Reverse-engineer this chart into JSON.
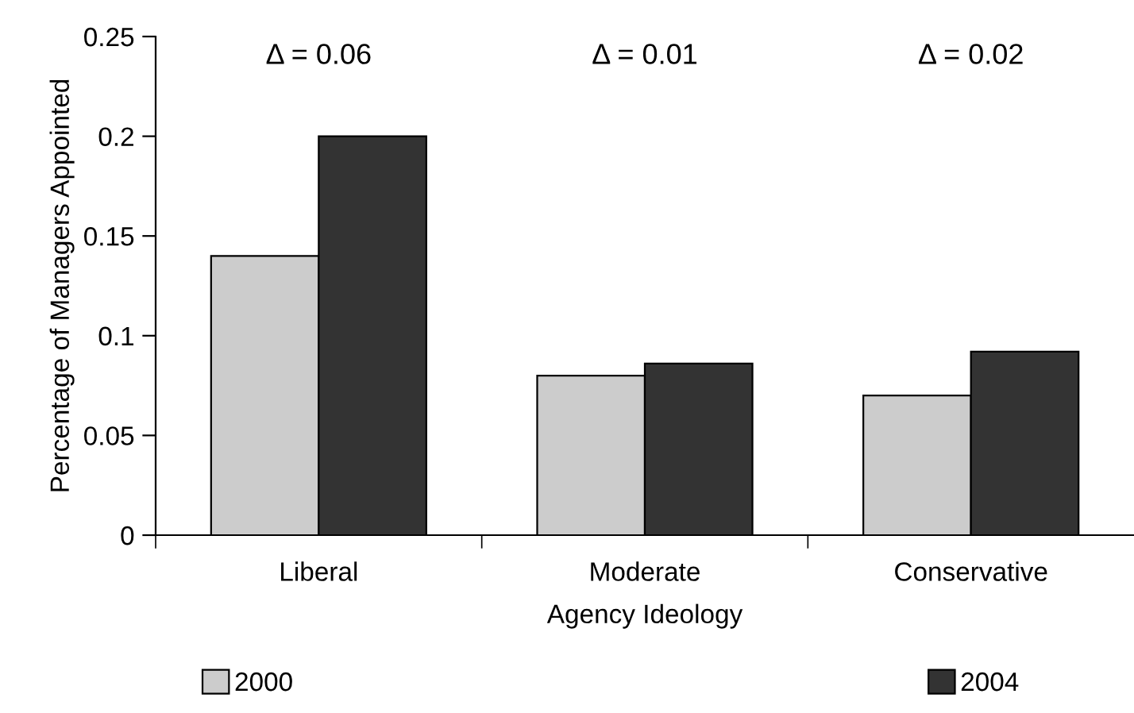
{
  "chart_data": {
    "type": "bar",
    "xlabel": "Agency Ideology",
    "ylabel": "Percentage of Managers Appointed",
    "categories": [
      "Liberal",
      "Moderate",
      "Conservative"
    ],
    "series": [
      {
        "name": "2000",
        "color": "#cccccc",
        "values": [
          0.14,
          0.08,
          0.07
        ]
      },
      {
        "name": "2004",
        "color": "#333333",
        "values": [
          0.2,
          0.086,
          0.092
        ]
      }
    ],
    "ylim": [
      0,
      0.25
    ],
    "yticks": [
      0,
      0.05,
      0.1,
      0.15,
      0.2,
      0.25
    ],
    "annotations": [
      "Δ = 0.06",
      "Δ = 0.01",
      "Δ = 0.02"
    ],
    "grid": false,
    "legend": "bottom"
  }
}
